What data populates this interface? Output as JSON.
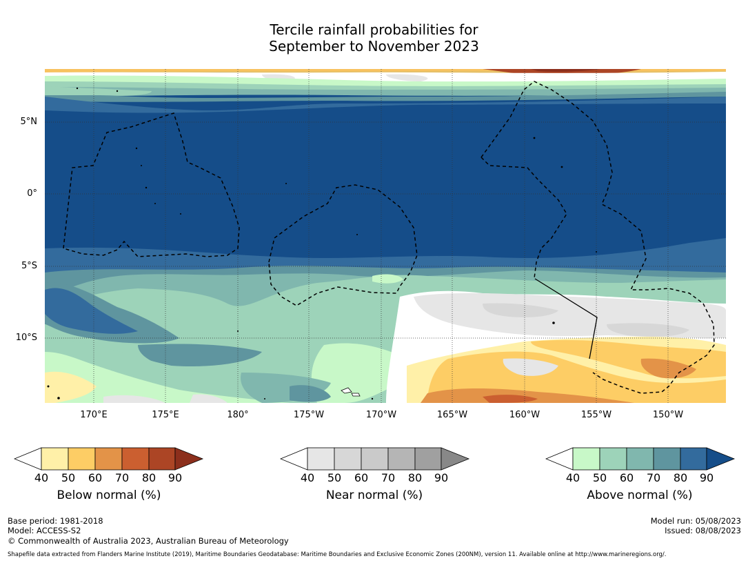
{
  "title": {
    "line1": "Tercile rainfall probabilities for",
    "line2": "September to November 2023"
  },
  "map": {
    "latitude_labels": [
      "5°N",
      "0°",
      "5°S",
      "10°S"
    ],
    "longitude_labels": [
      "170°E",
      "175°E",
      "180°",
      "175°W",
      "170°W",
      "165°W",
      "160°W",
      "155°W",
      "150°W"
    ]
  },
  "legends": {
    "below": {
      "title": "Below normal (%)",
      "ticks": [
        "40",
        "50",
        "60",
        "70",
        "80",
        "90"
      ],
      "colors": [
        "#fff0a8",
        "#fdcd65",
        "#e39348",
        "#cb5f30",
        "#ac4525",
        "#8c2f1c"
      ]
    },
    "near": {
      "title": "Near normal (%)",
      "ticks": [
        "40",
        "50",
        "60",
        "70",
        "80",
        "90"
      ],
      "colors": [
        "#e6e6e6",
        "#d7d7d7",
        "#cacaca",
        "#b5b5b5",
        "#a0a0a0",
        "#888888"
      ]
    },
    "above": {
      "title": "Above normal (%)",
      "ticks": [
        "40",
        "50",
        "60",
        "70",
        "80",
        "90"
      ],
      "colors": [
        "#c8f8c8",
        "#9dd3b9",
        "#80b7ae",
        "#5f959f",
        "#336b9d",
        "#154d89"
      ]
    }
  },
  "footer": {
    "base_period": "Base period: 1981-2018",
    "model": "Model: ACCESS-S2",
    "copyright": "© Commonwealth of Australia 2023, Australian Bureau of Meteorology",
    "model_run": "Model run: 05/08/2023",
    "issued": "Issued: 08/08/2023",
    "attribution": "Shapefile data extracted from Flanders Marine Institute (2019), Maritime Boundaries Geodatabase: Maritime Boundaries and Exclusive Economic Zones (200NM), version 11. Available online at http://www.marineregions.org/."
  }
}
